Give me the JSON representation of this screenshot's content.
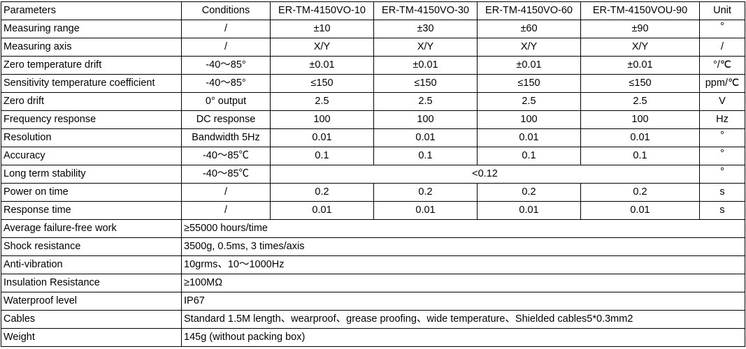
{
  "header": {
    "parameters": "Parameters",
    "conditions": "Conditions",
    "models": [
      "ER-TM-4150VO-10",
      "ER-TM-4150VO-30",
      "ER-TM-4150VO-60",
      "ER-TM-4150VOU-90"
    ],
    "unit": "Unit"
  },
  "rows": [
    {
      "parameter": "Measuring range",
      "condition": "/",
      "values": [
        "±10",
        "±30",
        "±60",
        "±90"
      ],
      "unit": "°"
    },
    {
      "parameter": "Measuring axis",
      "condition": "/",
      "values": [
        "X/Y",
        "X/Y",
        "X/Y",
        "X/Y"
      ],
      "unit": "/"
    },
    {
      "parameter": "Zero temperature drift",
      "condition": "-40～85°",
      "values": [
        "±0.01",
        "±0.01",
        "±0.01",
        "±0.01"
      ],
      "unit": "°/℃"
    },
    {
      "parameter": "Sensitivity  temperature coefficient",
      "condition": "-40～85°",
      "values": [
        "≤150",
        "≤150",
        "≤150",
        "≤150"
      ],
      "unit": "ppm/℃"
    },
    {
      "parameter": "Zero drift",
      "condition": "0° output",
      "values": [
        "2.5",
        "2.5",
        "2.5",
        "2.5"
      ],
      "unit": "V"
    },
    {
      "parameter": "Frequency response",
      "condition": "DC response",
      "values": [
        "100",
        "100",
        "100",
        "100"
      ],
      "unit": "Hz"
    },
    {
      "parameter": "Resolution",
      "condition": "Bandwidth 5Hz",
      "values": [
        "0.01",
        "0.01",
        "0.01",
        "0.01"
      ],
      "unit": "°"
    },
    {
      "parameter": "Accuracy",
      "condition": "-40～85℃",
      "values": [
        "0.1",
        "0.1",
        "0.1",
        "0.1"
      ],
      "unit": "°"
    }
  ],
  "stability": {
    "parameter": "Long term stability",
    "condition": "-40～85℃",
    "value": "<0.12",
    "unit": "°"
  },
  "rows2": [
    {
      "parameter": "Power on time",
      "condition": "/",
      "values": [
        "0.2",
        "0.2",
        "0.2",
        "0.2"
      ],
      "unit": "s"
    },
    {
      "parameter": "Response time",
      "condition": "/",
      "values": [
        "0.01",
        "0.01",
        "0.01",
        "0.01"
      ],
      "unit": "s"
    }
  ],
  "general": [
    {
      "parameter": "Average failure-free work",
      "value": "≥55000 hours/time"
    },
    {
      "parameter": "Shock resistance",
      "value": "3500g, 0.5ms, 3 times/axis"
    },
    {
      "parameter": "Anti-vibration",
      "value": "10grms、10～1000Hz"
    },
    {
      "parameter": "Insulation Resistance",
      "value": "≥100MΩ"
    },
    {
      "parameter": "Waterproof level",
      "value": "IP67"
    },
    {
      "parameter": "Cables",
      "value": "Standard 1.5M length、wearproof、grease proofing、wide temperature、Shielded cables5*0.3mm2"
    },
    {
      "parameter": "Weight",
      "value": "145g (without packing box)"
    }
  ]
}
